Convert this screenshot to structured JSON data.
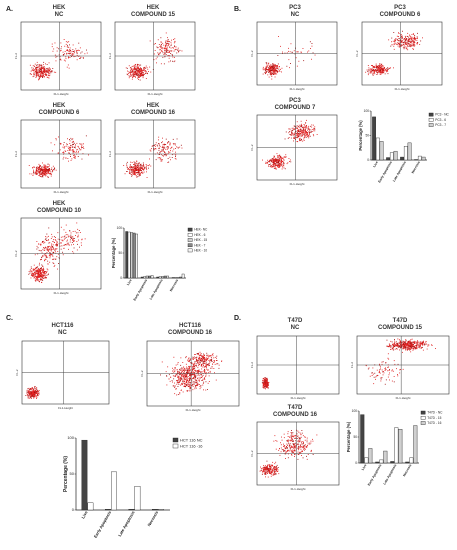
{
  "panels": [
    {
      "letter": "A.",
      "x": "",
      "y": ""
    },
    {
      "letter": "B.",
      "x": "",
      "y": ""
    },
    {
      "letter": "C.",
      "x": "",
      "y": ""
    },
    {
      "letter": "D.",
      "x": "",
      "y": ""
    }
  ],
  "flow_axis": {
    "x_label": "FL1-Height",
    "y_label": "FL-2"
  },
  "flow_plots": [
    {
      "id": "hek-nc",
      "line1": "HEK",
      "line2": "NC"
    },
    {
      "id": "hek-15",
      "line1": "HEK",
      "line2": "COMPOUND 15"
    },
    {
      "id": "hek-6",
      "line1": "HEK",
      "line2": "COMPOUND 6"
    },
    {
      "id": "hek-16",
      "line1": "HEK",
      "line2": "COMPOUND 16"
    },
    {
      "id": "hek-10",
      "line1": "HEK",
      "line2": "COMPOUND 10"
    },
    {
      "id": "pc3-nc",
      "line1": "PC3",
      "line2": "NC"
    },
    {
      "id": "pc3-6",
      "line1": "PC3",
      "line2": "COMPOUND 6"
    },
    {
      "id": "pc3-7",
      "line1": "PC3",
      "line2": "COMPOUND 7"
    },
    {
      "id": "hct-nc",
      "line1": "HCT116",
      "line2": "NC"
    },
    {
      "id": "hct-16",
      "line1": "HCT116",
      "line2": "COMPOUND 16"
    },
    {
      "id": "t47d-nc",
      "line1": "T47D",
      "line2": "NC"
    },
    {
      "id": "t47d-15",
      "line1": "T47D",
      "line2": "COMPOUND 15"
    },
    {
      "id": "t47d-16",
      "line1": "T47D",
      "line2": "COMPOUND 16"
    }
  ],
  "chart_data": [
    {
      "id": "hek-bar",
      "type": "bar",
      "ylabel": "Percentage (%)",
      "ylim": [
        0,
        100
      ],
      "categories": [
        "Live",
        "Early Apoptosis",
        "Late Apoptosis",
        "Necrosis"
      ],
      "series": [
        {
          "name": "HEK- NC",
          "values": [
            93,
            2,
            2,
            1
          ]
        },
        {
          "name": "HEK - 6",
          "values": [
            92,
            3,
            3,
            1
          ]
        },
        {
          "name": "HEK - 15",
          "values": [
            91,
            4,
            3,
            1
          ]
        },
        {
          "name": "HEK - 7",
          "values": [
            90,
            4,
            4,
            2
          ]
        },
        {
          "name": "HEK - 10",
          "values": [
            88,
            5,
            4,
            8
          ]
        }
      ]
    },
    {
      "id": "pc3-bar",
      "type": "bar",
      "ylabel": "Percentage (%)",
      "ylim": [
        0,
        100
      ],
      "categories": [
        "Live",
        "Early Apoptosis",
        "Late Apoptosis",
        "Necrosis"
      ],
      "series": [
        {
          "name": "PC3 - NC",
          "values": [
            88,
            5,
            6,
            1
          ]
        },
        {
          "name": "PC3 - 6",
          "values": [
            45,
            15,
            28,
            8
          ]
        },
        {
          "name": "PC3 - 7",
          "values": [
            38,
            18,
            35,
            6
          ]
        }
      ]
    },
    {
      "id": "hct-bar",
      "type": "bar",
      "ylabel": "Percentage (%)",
      "ylim": [
        0,
        100
      ],
      "categories": [
        "Live",
        "Early Apoptosis",
        "Late Apoptosis",
        "Necrosis"
      ],
      "series": [
        {
          "name": "HCT 116 NC",
          "values": [
            97,
            1,
            1,
            1
          ]
        },
        {
          "name": "HCT 116 -16",
          "values": [
            10,
            53,
            33,
            1
          ]
        }
      ]
    },
    {
      "id": "t47d-bar",
      "type": "bar",
      "ylabel": "Percentage (%)",
      "ylim": [
        0,
        100
      ],
      "categories": [
        "Live",
        "Early Apoptosis",
        "Late Apoptosis",
        "Necrosis"
      ],
      "series": [
        {
          "name": "T47D - NC",
          "values": [
            93,
            2,
            3,
            2
          ]
        },
        {
          "name": "T47D - 15",
          "values": [
            10,
            6,
            68,
            10
          ]
        },
        {
          "name": "T47D - 16",
          "values": [
            28,
            23,
            65,
            72
          ]
        }
      ]
    }
  ],
  "colors": {
    "dots": "#e02020",
    "dots_dark": "#a01010",
    "bar_dark": "#444444",
    "bar_mid": "#888888",
    "bar_light": "#d0d0d0"
  }
}
